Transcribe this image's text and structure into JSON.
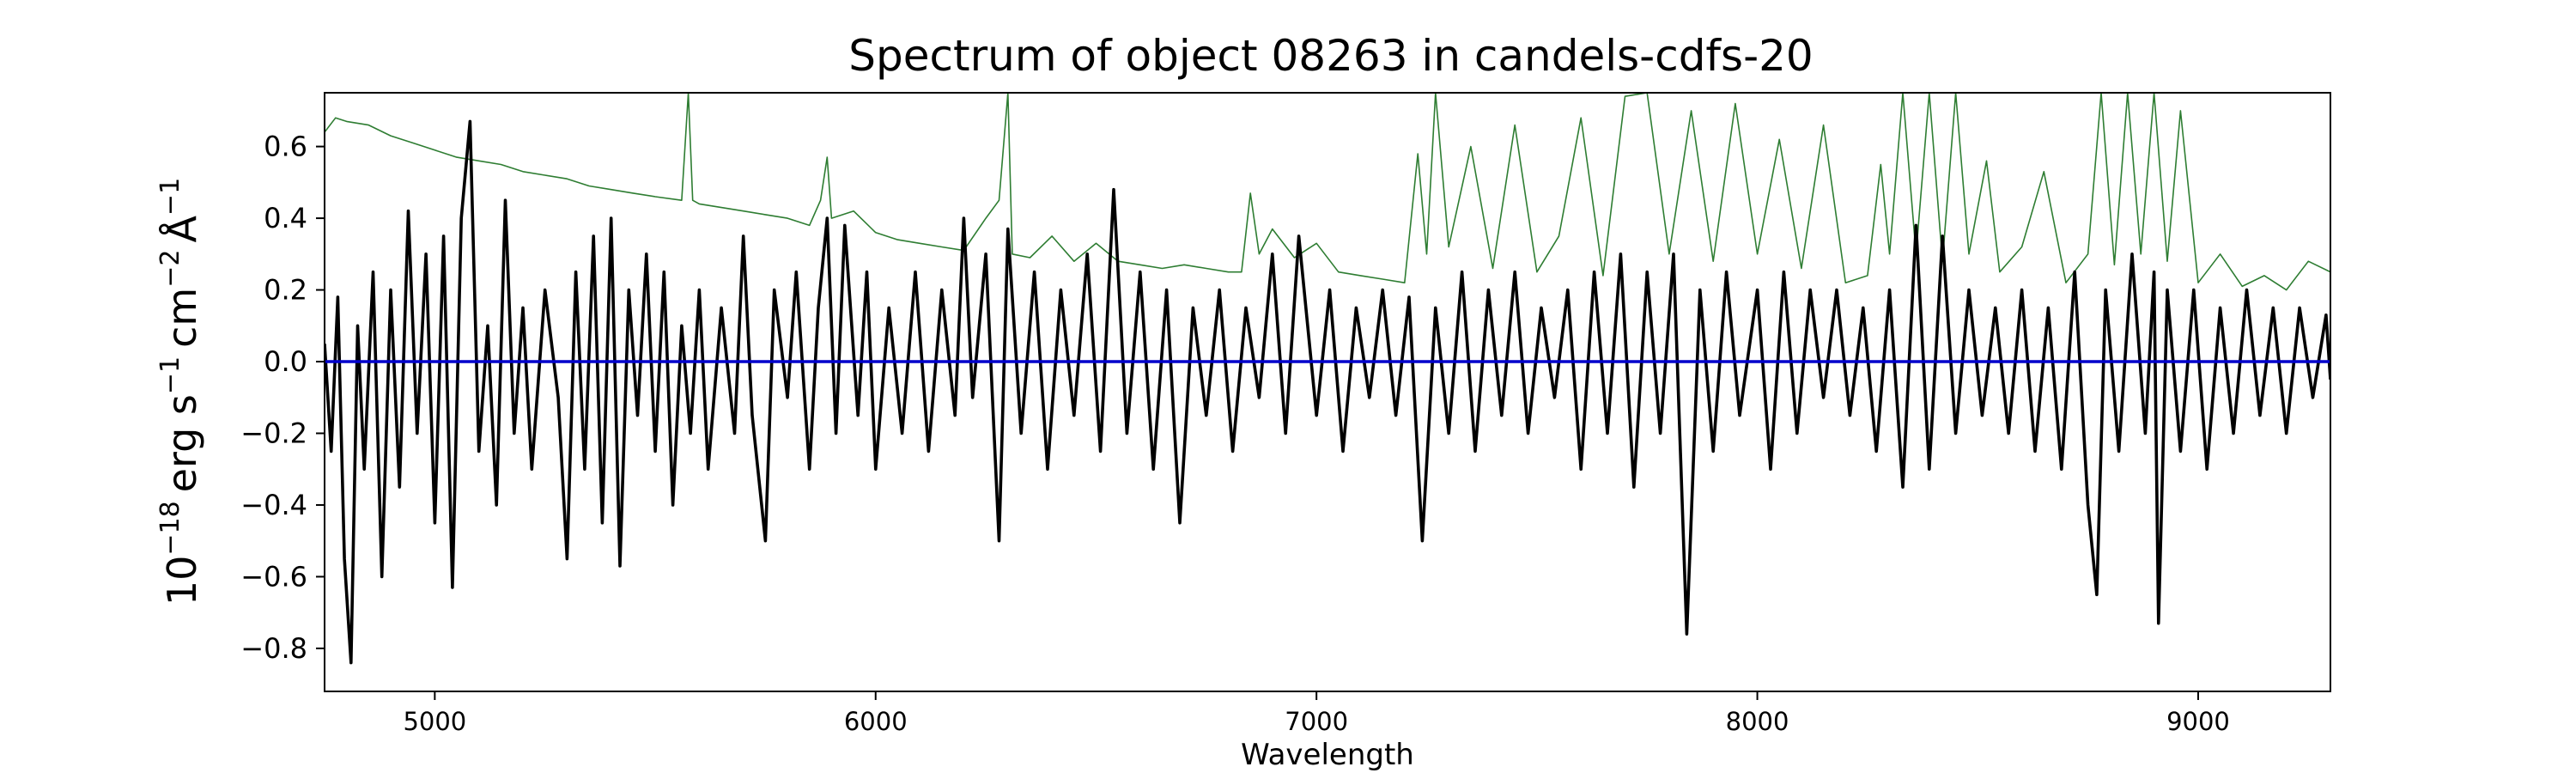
{
  "chart_data": {
    "type": "line",
    "title": "Spectrum of object 08263 in candels-cdfs-20",
    "xlabel": "Wavelength",
    "ylabel": {
      "base": "10",
      "base_exp": "−18",
      "erg": "erg s",
      "s_exp": "−1",
      "cm": "cm",
      "cm_exp": "−2",
      "angstrom": "Å",
      "a_exp": "−1"
    },
    "xlim": [
      4750,
      9300
    ],
    "ylim": [
      -0.92,
      0.75
    ],
    "x_ticks": [
      5000,
      6000,
      7000,
      8000,
      9000
    ],
    "x_tick_labels": [
      "5000",
      "6000",
      "7000",
      "8000",
      "9000"
    ],
    "y_ticks": [
      -0.8,
      -0.6,
      -0.4,
      -0.2,
      0.0,
      0.2,
      0.4,
      0.6
    ],
    "y_tick_labels": [
      "−0.8",
      "−0.6",
      "−0.4",
      "−0.2",
      "0.0",
      "0.2",
      "0.4",
      "0.6"
    ],
    "grid": false,
    "legend": "none",
    "series": [
      {
        "color": "#2e7d32",
        "style": "thin",
        "points": [
          [
            4750,
            0.64
          ],
          [
            4775,
            0.68
          ],
          [
            4800,
            0.67
          ],
          [
            4850,
            0.66
          ],
          [
            4900,
            0.63
          ],
          [
            4950,
            0.61
          ],
          [
            5000,
            0.59
          ],
          [
            5050,
            0.57
          ],
          [
            5100,
            0.56
          ],
          [
            5150,
            0.55
          ],
          [
            5200,
            0.53
          ],
          [
            5250,
            0.52
          ],
          [
            5300,
            0.51
          ],
          [
            5350,
            0.49
          ],
          [
            5400,
            0.48
          ],
          [
            5450,
            0.47
          ],
          [
            5500,
            0.46
          ],
          [
            5560,
            0.45
          ],
          [
            5575,
            0.75
          ],
          [
            5585,
            0.45
          ],
          [
            5600,
            0.44
          ],
          [
            5650,
            0.43
          ],
          [
            5700,
            0.42
          ],
          [
            5750,
            0.41
          ],
          [
            5800,
            0.4
          ],
          [
            5850,
            0.38
          ],
          [
            5875,
            0.45
          ],
          [
            5890,
            0.57
          ],
          [
            5900,
            0.4
          ],
          [
            5950,
            0.42
          ],
          [
            6000,
            0.36
          ],
          [
            6050,
            0.34
          ],
          [
            6100,
            0.33
          ],
          [
            6150,
            0.32
          ],
          [
            6200,
            0.31
          ],
          [
            6250,
            0.4
          ],
          [
            6280,
            0.45
          ],
          [
            6300,
            0.75
          ],
          [
            6310,
            0.3
          ],
          [
            6350,
            0.29
          ],
          [
            6400,
            0.35
          ],
          [
            6450,
            0.28
          ],
          [
            6500,
            0.33
          ],
          [
            6550,
            0.28
          ],
          [
            6600,
            0.27
          ],
          [
            6650,
            0.26
          ],
          [
            6700,
            0.27
          ],
          [
            6750,
            0.26
          ],
          [
            6800,
            0.25
          ],
          [
            6830,
            0.25
          ],
          [
            6850,
            0.47
          ],
          [
            6870,
            0.3
          ],
          [
            6900,
            0.37
          ],
          [
            6950,
            0.29
          ],
          [
            7000,
            0.33
          ],
          [
            7050,
            0.25
          ],
          [
            7100,
            0.24
          ],
          [
            7150,
            0.23
          ],
          [
            7200,
            0.22
          ],
          [
            7230,
            0.58
          ],
          [
            7250,
            0.3
          ],
          [
            7270,
            0.75
          ],
          [
            7300,
            0.32
          ],
          [
            7350,
            0.6
          ],
          [
            7400,
            0.26
          ],
          [
            7450,
            0.66
          ],
          [
            7500,
            0.25
          ],
          [
            7550,
            0.35
          ],
          [
            7600,
            0.68
          ],
          [
            7650,
            0.24
          ],
          [
            7700,
            0.74
          ],
          [
            7750,
            0.75
          ],
          [
            7800,
            0.3
          ],
          [
            7850,
            0.7
          ],
          [
            7900,
            0.28
          ],
          [
            7950,
            0.72
          ],
          [
            8000,
            0.3
          ],
          [
            8050,
            0.62
          ],
          [
            8100,
            0.26
          ],
          [
            8150,
            0.66
          ],
          [
            8200,
            0.22
          ],
          [
            8250,
            0.24
          ],
          [
            8280,
            0.55
          ],
          [
            8300,
            0.3
          ],
          [
            8330,
            0.75
          ],
          [
            8360,
            0.3
          ],
          [
            8390,
            0.75
          ],
          [
            8420,
            0.28
          ],
          [
            8450,
            0.75
          ],
          [
            8480,
            0.3
          ],
          [
            8520,
            0.56
          ],
          [
            8550,
            0.25
          ],
          [
            8600,
            0.32
          ],
          [
            8650,
            0.53
          ],
          [
            8700,
            0.22
          ],
          [
            8750,
            0.3
          ],
          [
            8780,
            0.75
          ],
          [
            8810,
            0.27
          ],
          [
            8840,
            0.75
          ],
          [
            8870,
            0.3
          ],
          [
            8900,
            0.75
          ],
          [
            8930,
            0.28
          ],
          [
            8960,
            0.7
          ],
          [
            9000,
            0.22
          ],
          [
            9050,
            0.3
          ],
          [
            9100,
            0.21
          ],
          [
            9150,
            0.24
          ],
          [
            9200,
            0.2
          ],
          [
            9250,
            0.28
          ],
          [
            9300,
            0.25
          ]
        ]
      },
      {
        "color": "#000000",
        "style": "thick",
        "points": [
          [
            4750,
            0.05
          ],
          [
            4765,
            -0.25
          ],
          [
            4780,
            0.18
          ],
          [
            4795,
            -0.55
          ],
          [
            4810,
            -0.84
          ],
          [
            4825,
            0.1
          ],
          [
            4840,
            -0.3
          ],
          [
            4860,
            0.25
          ],
          [
            4880,
            -0.6
          ],
          [
            4900,
            0.2
          ],
          [
            4920,
            -0.35
          ],
          [
            4940,
            0.42
          ],
          [
            4960,
            -0.2
          ],
          [
            4980,
            0.3
          ],
          [
            5000,
            -0.45
          ],
          [
            5020,
            0.35
          ],
          [
            5040,
            -0.63
          ],
          [
            5060,
            0.4
          ],
          [
            5080,
            0.67
          ],
          [
            5100,
            -0.25
          ],
          [
            5120,
            0.1
          ],
          [
            5140,
            -0.4
          ],
          [
            5160,
            0.45
          ],
          [
            5180,
            -0.2
          ],
          [
            5200,
            0.15
          ],
          [
            5220,
            -0.3
          ],
          [
            5250,
            0.2
          ],
          [
            5280,
            -0.1
          ],
          [
            5300,
            -0.55
          ],
          [
            5320,
            0.25
          ],
          [
            5340,
            -0.3
          ],
          [
            5360,
            0.35
          ],
          [
            5380,
            -0.45
          ],
          [
            5400,
            0.4
          ],
          [
            5420,
            -0.57
          ],
          [
            5440,
            0.2
          ],
          [
            5460,
            -0.15
          ],
          [
            5480,
            0.3
          ],
          [
            5500,
            -0.25
          ],
          [
            5520,
            0.25
          ],
          [
            5540,
            -0.4
          ],
          [
            5560,
            0.1
          ],
          [
            5580,
            -0.2
          ],
          [
            5600,
            0.2
          ],
          [
            5620,
            -0.3
          ],
          [
            5650,
            0.15
          ],
          [
            5680,
            -0.2
          ],
          [
            5700,
            0.35
          ],
          [
            5720,
            -0.15
          ],
          [
            5750,
            -0.5
          ],
          [
            5770,
            0.2
          ],
          [
            5800,
            -0.1
          ],
          [
            5820,
            0.25
          ],
          [
            5850,
            -0.3
          ],
          [
            5870,
            0.15
          ],
          [
            5890,
            0.4
          ],
          [
            5910,
            -0.2
          ],
          [
            5930,
            0.38
          ],
          [
            5960,
            -0.15
          ],
          [
            5980,
            0.25
          ],
          [
            6000,
            -0.3
          ],
          [
            6030,
            0.15
          ],
          [
            6060,
            -0.2
          ],
          [
            6090,
            0.25
          ],
          [
            6120,
            -0.25
          ],
          [
            6150,
            0.2
          ],
          [
            6180,
            -0.15
          ],
          [
            6200,
            0.4
          ],
          [
            6220,
            -0.1
          ],
          [
            6250,
            0.3
          ],
          [
            6280,
            -0.5
          ],
          [
            6300,
            0.37
          ],
          [
            6330,
            -0.2
          ],
          [
            6360,
            0.25
          ],
          [
            6390,
            -0.3
          ],
          [
            6420,
            0.2
          ],
          [
            6450,
            -0.15
          ],
          [
            6480,
            0.3
          ],
          [
            6510,
            -0.25
          ],
          [
            6540,
            0.48
          ],
          [
            6570,
            -0.2
          ],
          [
            6600,
            0.25
          ],
          [
            6630,
            -0.3
          ],
          [
            6660,
            0.2
          ],
          [
            6690,
            -0.45
          ],
          [
            6720,
            0.15
          ],
          [
            6750,
            -0.15
          ],
          [
            6780,
            0.2
          ],
          [
            6810,
            -0.25
          ],
          [
            6840,
            0.15
          ],
          [
            6870,
            -0.1
          ],
          [
            6900,
            0.3
          ],
          [
            6930,
            -0.2
          ],
          [
            6960,
            0.35
          ],
          [
            7000,
            -0.15
          ],
          [
            7030,
            0.2
          ],
          [
            7060,
            -0.25
          ],
          [
            7090,
            0.15
          ],
          [
            7120,
            -0.1
          ],
          [
            7150,
            0.2
          ],
          [
            7180,
            -0.15
          ],
          [
            7210,
            0.18
          ],
          [
            7240,
            -0.5
          ],
          [
            7270,
            0.15
          ],
          [
            7300,
            -0.2
          ],
          [
            7330,
            0.25
          ],
          [
            7360,
            -0.25
          ],
          [
            7390,
            0.2
          ],
          [
            7420,
            -0.15
          ],
          [
            7450,
            0.25
          ],
          [
            7480,
            -0.2
          ],
          [
            7510,
            0.15
          ],
          [
            7540,
            -0.1
          ],
          [
            7570,
            0.2
          ],
          [
            7600,
            -0.3
          ],
          [
            7630,
            0.25
          ],
          [
            7660,
            -0.2
          ],
          [
            7690,
            0.3
          ],
          [
            7720,
            -0.35
          ],
          [
            7750,
            0.25
          ],
          [
            7780,
            -0.2
          ],
          [
            7810,
            0.3
          ],
          [
            7840,
            -0.76
          ],
          [
            7870,
            0.2
          ],
          [
            7900,
            -0.25
          ],
          [
            7930,
            0.25
          ],
          [
            7960,
            -0.15
          ],
          [
            8000,
            0.2
          ],
          [
            8030,
            -0.3
          ],
          [
            8060,
            0.25
          ],
          [
            8090,
            -0.2
          ],
          [
            8120,
            0.2
          ],
          [
            8150,
            -0.1
          ],
          [
            8180,
            0.2
          ],
          [
            8210,
            -0.15
          ],
          [
            8240,
            0.15
          ],
          [
            8270,
            -0.25
          ],
          [
            8300,
            0.2
          ],
          [
            8330,
            -0.35
          ],
          [
            8360,
            0.38
          ],
          [
            8390,
            -0.3
          ],
          [
            8420,
            0.35
          ],
          [
            8450,
            -0.2
          ],
          [
            8480,
            0.2
          ],
          [
            8510,
            -0.15
          ],
          [
            8540,
            0.15
          ],
          [
            8570,
            -0.2
          ],
          [
            8600,
            0.2
          ],
          [
            8630,
            -0.25
          ],
          [
            8660,
            0.15
          ],
          [
            8690,
            -0.3
          ],
          [
            8720,
            0.25
          ],
          [
            8750,
            -0.4
          ],
          [
            8770,
            -0.65
          ],
          [
            8790,
            0.2
          ],
          [
            8820,
            -0.25
          ],
          [
            8850,
            0.3
          ],
          [
            8880,
            -0.2
          ],
          [
            8900,
            0.25
          ],
          [
            8910,
            -0.73
          ],
          [
            8930,
            0.2
          ],
          [
            8960,
            -0.25
          ],
          [
            8990,
            0.2
          ],
          [
            9020,
            -0.3
          ],
          [
            9050,
            0.15
          ],
          [
            9080,
            -0.2
          ],
          [
            9110,
            0.2
          ],
          [
            9140,
            -0.15
          ],
          [
            9170,
            0.15
          ],
          [
            9200,
            -0.2
          ],
          [
            9230,
            0.15
          ],
          [
            9260,
            -0.1
          ],
          [
            9290,
            0.13
          ],
          [
            9300,
            -0.05
          ]
        ]
      },
      {
        "color": "#0000cc",
        "style": "thick",
        "points": [
          [
            4750,
            0.0
          ],
          [
            9300,
            0.0
          ]
        ]
      }
    ]
  }
}
